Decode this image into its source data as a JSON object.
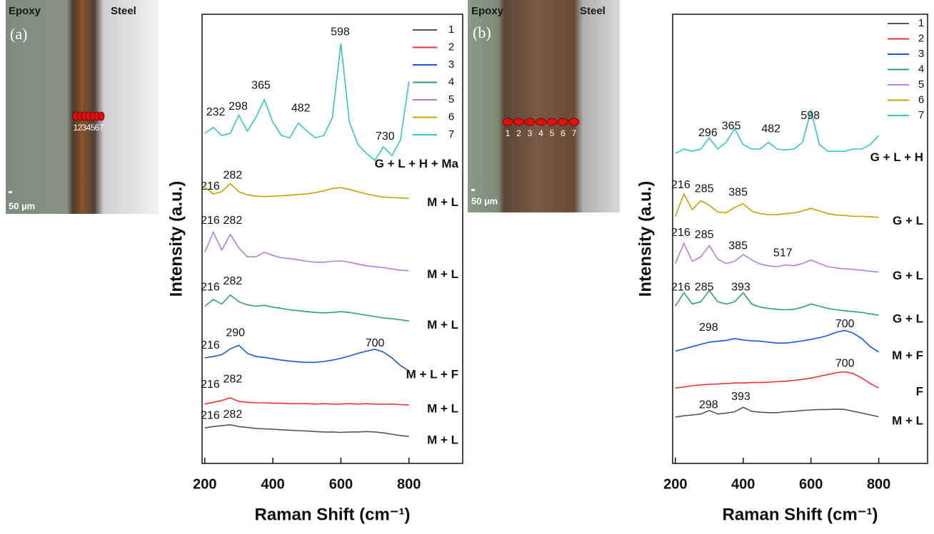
{
  "panels": [
    {
      "label": "(a)",
      "left_material": "Epoxy",
      "right_material": "Steel",
      "scale_bar": "50 µm",
      "points": [
        "1",
        "2",
        "3",
        "4",
        "5",
        "6",
        "7"
      ]
    },
    {
      "label": "(b)",
      "left_material": "Epoxy",
      "right_material": "Steel",
      "scale_bar": "50 µm",
      "points": [
        "1",
        "2",
        "3",
        "4",
        "5",
        "6",
        "7"
      ]
    }
  ],
  "chart_data": [
    {
      "type": "line",
      "x_label": "Raman Shift (cm⁻¹)",
      "y_label": "Intensity (a.u.)",
      "xlim": [
        192,
        958
      ],
      "xticks": [
        200,
        400,
        600,
        800
      ],
      "ylim": [
        0,
        100
      ],
      "x": [
        200,
        225,
        250,
        275,
        300,
        325,
        350,
        375,
        400,
        425,
        450,
        475,
        500,
        525,
        550,
        575,
        600,
        625,
        650,
        675,
        700,
        725,
        750,
        775,
        800
      ],
      "series": [
        {
          "name": "1",
          "color": "#555555",
          "phase": "M + L",
          "values": [
            7.9,
            8.2,
            8.4,
            8.6,
            8.2,
            8.0,
            7.8,
            7.7,
            7.6,
            7.5,
            7.4,
            7.3,
            7.2,
            7.1,
            7.0,
            7.0,
            6.9,
            7.0,
            7.0,
            7.1,
            7.0,
            6.8,
            6.5,
            6.2,
            6.0
          ]
        },
        {
          "name": "2",
          "color": "#ee3333",
          "phase": "M + L",
          "values": [
            13.2,
            13.6,
            14.0,
            14.6,
            13.8,
            13.6,
            13.5,
            13.5,
            13.4,
            13.4,
            13.3,
            13.3,
            13.3,
            13.2,
            13.3,
            13.2,
            13.2,
            13.3,
            13.2,
            13.3,
            13.2,
            13.2,
            13.2,
            13.1,
            13.0
          ]
        },
        {
          "name": "3",
          "color": "#1a55d6",
          "phase": "M + L + F",
          "values": [
            23.5,
            23.8,
            24.2,
            25.5,
            26.3,
            24.5,
            23.8,
            23.6,
            23.3,
            23.0,
            22.8,
            22.6,
            22.5,
            22.5,
            22.7,
            23.0,
            23.4,
            23.9,
            24.5,
            25.0,
            25.4,
            24.8,
            23.5,
            21.8,
            20.6
          ]
        },
        {
          "name": "4",
          "color": "#2ea36b",
          "phase": "M + L",
          "values": [
            35.0,
            36.5,
            35.5,
            37.5,
            36.0,
            35.3,
            35.0,
            35.2,
            34.8,
            34.5,
            34.2,
            34.0,
            33.8,
            33.6,
            33.5,
            33.6,
            33.8,
            33.6,
            33.3,
            33.0,
            32.7,
            32.4,
            32.2,
            32.0,
            31.7
          ]
        },
        {
          "name": "5",
          "color": "#b57ee0",
          "phase": "M + L",
          "values": [
            47.0,
            51.5,
            47.5,
            51.0,
            48.0,
            46.0,
            46.0,
            47.0,
            46.3,
            45.8,
            45.6,
            45.3,
            45.0,
            44.8,
            44.8,
            45.0,
            45.1,
            44.8,
            44.4,
            44.0,
            43.8,
            43.6,
            43.3,
            43.0,
            42.9
          ]
        },
        {
          "name": "6",
          "color": "#c8a000",
          "phase": "M + L",
          "values": [
            61.5,
            60.0,
            60.5,
            62.3,
            60.5,
            59.8,
            59.5,
            59.4,
            59.5,
            59.6,
            59.7,
            59.9,
            60.0,
            60.3,
            60.7,
            61.2,
            61.4,
            61.0,
            60.5,
            60.0,
            59.6,
            59.3,
            59.2,
            59.1,
            59.0
          ]
        },
        {
          "name": "7",
          "color": "#33c6c6",
          "phase": "G + L + H + Ma",
          "values": [
            73.5,
            74.8,
            73.0,
            73.5,
            77.5,
            74.0,
            77.0,
            81.0,
            76.0,
            73.0,
            72.5,
            75.8,
            74.0,
            72.5,
            73.0,
            77.0,
            93.5,
            76.0,
            71.0,
            69.0,
            67.5,
            70.5,
            68.5,
            72.0,
            85.0
          ]
        }
      ],
      "peaks": [
        {
          "x": 232,
          "y": 78.1
        },
        {
          "x": 298,
          "y": 79.4
        },
        {
          "x": 365,
          "y": 84.1
        },
        {
          "x": 482,
          "y": 79.0
        },
        {
          "x": 598,
          "y": 96.0
        },
        {
          "x": 730,
          "y": 72.7
        },
        {
          "x": 216,
          "y": 61.6
        },
        {
          "x": 282,
          "y": 64.1
        },
        {
          "x": 216,
          "y": 54.0
        },
        {
          "x": 282,
          "y": 54.0
        },
        {
          "x": 216,
          "y": 39.2
        },
        {
          "x": 282,
          "y": 40.5
        },
        {
          "x": 216,
          "y": 26.2
        },
        {
          "x": 290,
          "y": 29.0
        },
        {
          "x": 700,
          "y": 26.7
        },
        {
          "x": 216,
          "y": 17.5
        },
        {
          "x": 282,
          "y": 18.7
        },
        {
          "x": 216,
          "y": 10.6
        },
        {
          "x": 282,
          "y": 10.8
        }
      ]
    },
    {
      "type": "line",
      "x_label": "Raman Shift (cm⁻¹)",
      "y_label": "Intensity (a.u.)",
      "xlim": [
        192,
        944
      ],
      "xticks": [
        200,
        400,
        600,
        800
      ],
      "ylim": [
        0,
        100
      ],
      "x": [
        200,
        225,
        250,
        275,
        300,
        325,
        350,
        375,
        400,
        425,
        450,
        475,
        500,
        525,
        550,
        575,
        600,
        625,
        650,
        675,
        700,
        725,
        750,
        775,
        800
      ],
      "series": [
        {
          "name": "1",
          "color": "#555555",
          "phase": "M + L",
          "values": [
            10.3,
            10.6,
            10.8,
            11.0,
            11.8,
            11.0,
            11.2,
            11.5,
            12.5,
            11.6,
            11.4,
            11.3,
            11.3,
            11.5,
            11.6,
            11.8,
            11.9,
            12.0,
            12.0,
            12.1,
            12.0,
            11.6,
            11.2,
            10.8,
            10.4
          ]
        },
        {
          "name": "2",
          "color": "#ee3333",
          "phase": "F",
          "values": [
            16.8,
            17.0,
            17.3,
            17.5,
            17.6,
            17.7,
            17.8,
            17.9,
            17.9,
            18.0,
            18.0,
            18.1,
            18.2,
            18.3,
            18.5,
            18.7,
            19.0,
            19.4,
            19.8,
            20.2,
            20.4,
            20.0,
            19.0,
            17.8,
            16.8
          ]
        },
        {
          "name": "3",
          "color": "#1a55d6",
          "phase": "M + F",
          "values": [
            25.0,
            25.5,
            26.0,
            26.5,
            27.0,
            27.2,
            27.4,
            27.8,
            27.5,
            27.3,
            27.2,
            27.0,
            26.8,
            26.8,
            27.0,
            27.3,
            27.6,
            28.0,
            28.5,
            29.2,
            29.6,
            29.0,
            27.8,
            26.0,
            24.8
          ]
        },
        {
          "name": "4",
          "color": "#2ea36b",
          "phase": "G + L",
          "values": [
            35.0,
            38.0,
            35.5,
            36.0,
            38.5,
            36.0,
            35.5,
            36.0,
            38.0,
            35.5,
            34.8,
            34.5,
            34.3,
            34.2,
            34.3,
            34.8,
            35.5,
            35.0,
            34.5,
            34.2,
            34.0,
            33.8,
            33.6,
            33.3,
            33.0
          ]
        },
        {
          "name": "5",
          "color": "#b57ee0",
          "phase": "G + L",
          "values": [
            44.5,
            49.0,
            45.0,
            46.0,
            48.5,
            45.5,
            44.5,
            45.0,
            46.5,
            45.3,
            44.4,
            44.0,
            43.8,
            44.2,
            44.0,
            44.5,
            45.3,
            44.5,
            43.8,
            43.5,
            43.3,
            43.2,
            43.0,
            42.8,
            42.6
          ]
        },
        {
          "name": "6",
          "color": "#c8a000",
          "phase": "G + L",
          "values": [
            55.0,
            60.0,
            56.5,
            58.5,
            57.5,
            56.0,
            55.8,
            57.0,
            57.8,
            56.2,
            55.6,
            55.4,
            55.4,
            55.6,
            55.8,
            56.2,
            56.8,
            56.2,
            55.6,
            55.3,
            55.2,
            55.0,
            55.0,
            54.9,
            54.8
          ]
        },
        {
          "name": "7",
          "color": "#33c6c6",
          "phase": "G + L + H",
          "values": [
            69.0,
            70.0,
            69.5,
            70.0,
            72.5,
            70.0,
            71.5,
            74.5,
            71.0,
            70.0,
            70.0,
            71.5,
            70.0,
            69.8,
            70.0,
            71.5,
            78.5,
            71.0,
            69.5,
            69.5,
            69.5,
            70.0,
            70.0,
            71.0,
            73.0
          ]
        }
      ],
      "peaks": [
        {
          "x": 296,
          "y": 73.5
        },
        {
          "x": 365,
          "y": 75.0
        },
        {
          "x": 482,
          "y": 74.4
        },
        {
          "x": 598,
          "y": 77.3
        },
        {
          "x": 216,
          "y": 61.9
        },
        {
          "x": 285,
          "y": 61.1
        },
        {
          "x": 385,
          "y": 60.3
        },
        {
          "x": 216,
          "y": 51.3
        },
        {
          "x": 285,
          "y": 50.8
        },
        {
          "x": 385,
          "y": 48.4
        },
        {
          "x": 517,
          "y": 46.8
        },
        {
          "x": 216,
          "y": 39.2
        },
        {
          "x": 285,
          "y": 39.2
        },
        {
          "x": 393,
          "y": 39.2
        },
        {
          "x": 298,
          "y": 30.2
        },
        {
          "x": 700,
          "y": 31.0
        },
        {
          "x": 700,
          "y": 22.2
        },
        {
          "x": 298,
          "y": 13.0
        },
        {
          "x": 393,
          "y": 14.8
        }
      ]
    }
  ]
}
